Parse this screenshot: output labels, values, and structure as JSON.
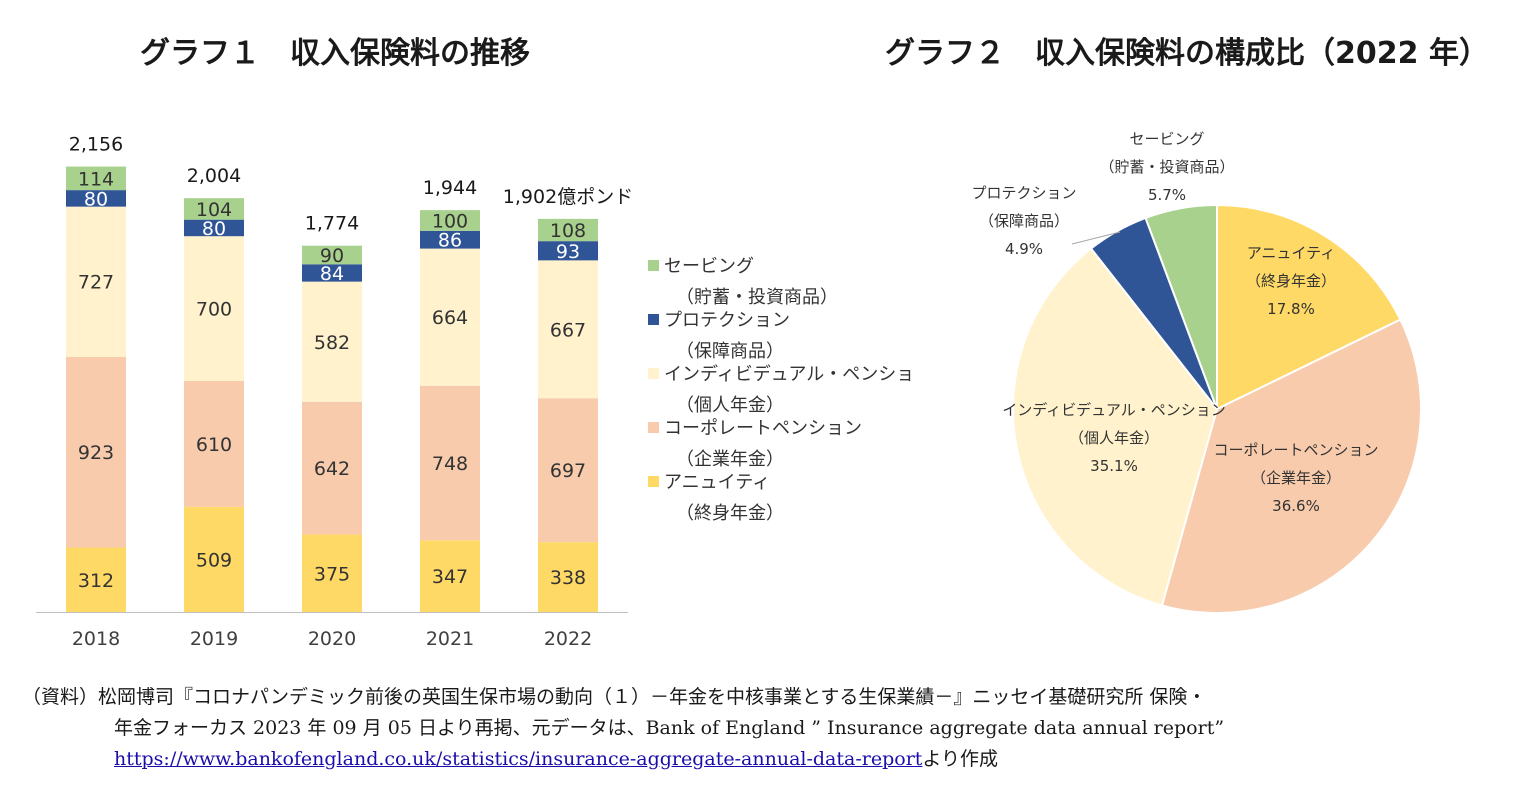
{
  "titles": {
    "chart1": "グラフ１　収入保険料の推移",
    "chart2": "グラフ２　収入保険料の構成比（2022 年）"
  },
  "colors": {
    "savings": "#a9d18e",
    "protection": "#2f5597",
    "individual": "#fff2cc",
    "corporate": "#f8cbad",
    "annuity": "#ffd966"
  },
  "chart_data": [
    {
      "type": "bar",
      "stacked": true,
      "title": "グラフ１　収入保険料の推移",
      "categories": [
        "2018",
        "2019",
        "2020",
        "2021",
        "2022"
      ],
      "unit": "億ポンド",
      "total_suffix": "億ポンド",
      "series": [
        {
          "key": "annuity",
          "name": "アニュイティ",
          "sub": "（終身年金）",
          "values": [
            312,
            509,
            375,
            347,
            338
          ]
        },
        {
          "key": "corporate",
          "name": "コーポレートペンション",
          "sub": "（企業年金）",
          "values": [
            923,
            610,
            642,
            748,
            697
          ]
        },
        {
          "key": "individual",
          "name": "インディビデュアル・ペンショ",
          "sub": "（個人年金）",
          "values": [
            727,
            700,
            582,
            664,
            667
          ]
        },
        {
          "key": "protection",
          "name": "プロテクション",
          "sub": "（保障商品）",
          "values": [
            80,
            80,
            84,
            86,
            93
          ]
        },
        {
          "key": "savings",
          "name": "セービング",
          "sub": "（貯蓄・投資商品）",
          "values": [
            114,
            104,
            90,
            100,
            108
          ]
        }
      ],
      "totals": [
        "2,156",
        "2,004",
        "1,774",
        "1,944",
        "1,902"
      ],
      "legend_order": [
        "savings",
        "protection",
        "individual",
        "corporate",
        "annuity"
      ],
      "legend_position": "right"
    },
    {
      "type": "pie",
      "title": "グラフ２　収入保険料の構成比（2022 年）",
      "slices": [
        {
          "key": "annuity",
          "label": "アニュイティ",
          "sub": "（終身年金）",
          "value": 17.8,
          "pct": "17.8%"
        },
        {
          "key": "corporate",
          "label": "コーポレートペンション",
          "sub": "（企業年金）",
          "value": 36.6,
          "pct": "36.6%"
        },
        {
          "key": "individual",
          "label": "インディビデュアル・ペンション",
          "sub": "（個人年金）",
          "value": 35.1,
          "pct": "35.1%"
        },
        {
          "key": "protection",
          "label": "プロテクション",
          "sub": "（保障商品）",
          "value": 4.9,
          "pct": "4.9%"
        },
        {
          "key": "savings",
          "label": "セービング",
          "sub": "（貯蓄・投資商品）",
          "value": 5.7,
          "pct": "5.7%"
        }
      ],
      "start_angle": "12 o'clock",
      "direction": "clockwise"
    }
  ],
  "source": {
    "line1": "（資料）松岡博司『コロナパンデミック前後の英国生保市場の動向（１）－年金を中核事業とする生保業績－』ニッセイ基礎研究所 保険・",
    "line2": "年金フォーカス 2023 年 09 月 05 日より再掲、元データは、Bank of England ” Insurance aggregate data annual report”",
    "url": "https://www.bankofengland.co.uk/statistics/insurance-aggregate-annual-data-report",
    "url_suffix": "より作成"
  }
}
